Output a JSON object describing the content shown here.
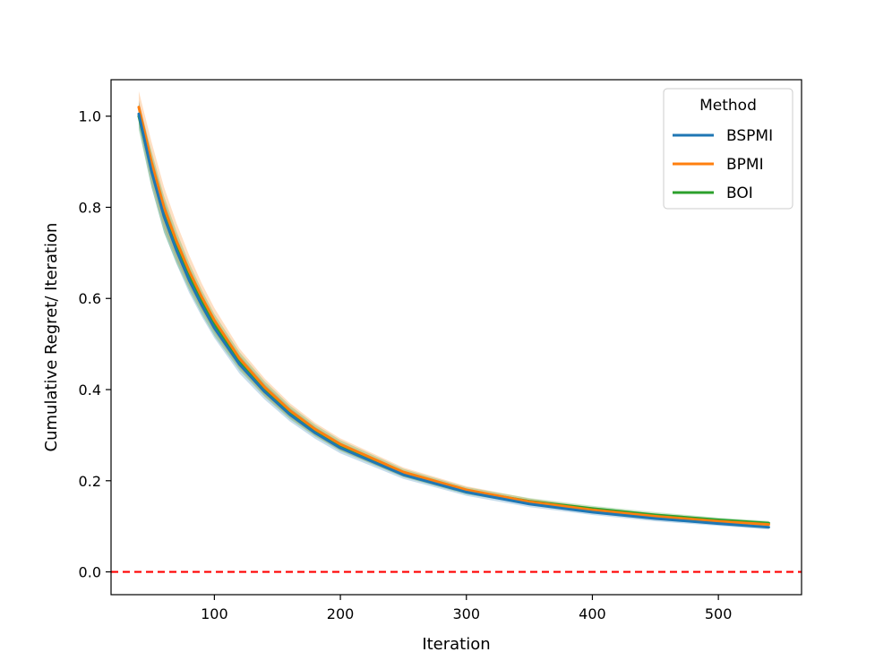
{
  "chart_data": {
    "type": "line",
    "xlabel": "Iteration",
    "ylabel": "Cumulative Regret/ Iteration",
    "xlim": [
      18,
      566
    ],
    "ylim": [
      -0.05,
      1.08
    ],
    "xticks": [
      100,
      200,
      300,
      400,
      500
    ],
    "yticks": [
      0.0,
      0.2,
      0.4,
      0.6,
      0.8,
      1.0
    ],
    "xtick_labels": [
      "100",
      "200",
      "300",
      "400",
      "500"
    ],
    "ytick_labels": [
      "0.0",
      "0.2",
      "0.4",
      "0.6",
      "0.8",
      "1.0"
    ],
    "grid": false,
    "legend": {
      "title": "Method",
      "position": "top-right"
    },
    "reference_line": {
      "y": 0.0,
      "color": "#ff0000",
      "style": "dashed"
    },
    "series": [
      {
        "name": "BSPMI",
        "color": "#1f77b4",
        "x": [
          40,
          50,
          60,
          70,
          80,
          90,
          100,
          120,
          140,
          160,
          180,
          200,
          250,
          300,
          350,
          400,
          450,
          500,
          540
        ],
        "y": [
          1.005,
          0.88,
          0.78,
          0.705,
          0.64,
          0.585,
          0.535,
          0.455,
          0.395,
          0.345,
          0.305,
          0.272,
          0.213,
          0.175,
          0.149,
          0.131,
          0.117,
          0.106,
          0.098
        ],
        "band": [
          0.03,
          0.035,
          0.035,
          0.03,
          0.028,
          0.025,
          0.022,
          0.02,
          0.017,
          0.015,
          0.013,
          0.012,
          0.009,
          0.008,
          0.007,
          0.006,
          0.006,
          0.005,
          0.005
        ]
      },
      {
        "name": "BPMI",
        "color": "#ff7f0e",
        "x": [
          40,
          50,
          60,
          70,
          80,
          90,
          100,
          120,
          140,
          160,
          180,
          200,
          250,
          300,
          350,
          400,
          450,
          500,
          540
        ],
        "y": [
          1.02,
          0.9,
          0.8,
          0.725,
          0.66,
          0.603,
          0.552,
          0.468,
          0.405,
          0.354,
          0.313,
          0.28,
          0.219,
          0.18,
          0.154,
          0.136,
          0.122,
          0.111,
          0.104
        ],
        "band": [
          0.035,
          0.045,
          0.045,
          0.04,
          0.035,
          0.03,
          0.027,
          0.022,
          0.019,
          0.016,
          0.014,
          0.013,
          0.01,
          0.008,
          0.007,
          0.006,
          0.006,
          0.005,
          0.005
        ]
      },
      {
        "name": "BOI",
        "color": "#2ca02c",
        "x": [
          40,
          50,
          60,
          70,
          80,
          90,
          100,
          120,
          140,
          160,
          180,
          200,
          250,
          300,
          350,
          400,
          450,
          500,
          540
        ],
        "y": [
          1.0,
          0.885,
          0.785,
          0.712,
          0.648,
          0.592,
          0.542,
          0.462,
          0.401,
          0.35,
          0.31,
          0.277,
          0.217,
          0.178,
          0.155,
          0.139,
          0.125,
          0.114,
          0.107
        ],
        "band": [
          0.03,
          0.04,
          0.04,
          0.035,
          0.03,
          0.027,
          0.024,
          0.02,
          0.017,
          0.015,
          0.013,
          0.012,
          0.009,
          0.008,
          0.007,
          0.006,
          0.006,
          0.005,
          0.005
        ]
      }
    ]
  }
}
